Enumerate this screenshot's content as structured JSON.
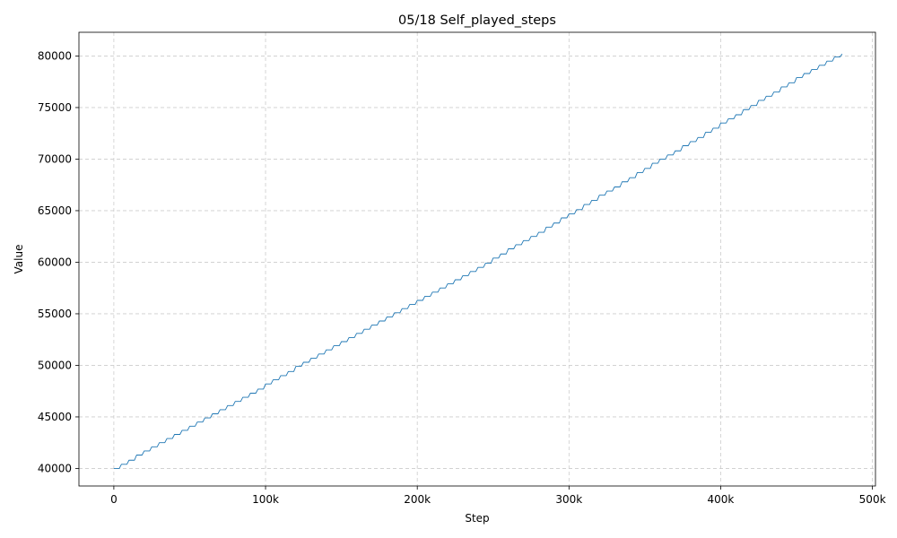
{
  "chart_data": {
    "type": "line",
    "title": "05/18  Self_played_steps",
    "xlabel": "Step",
    "ylabel": "Value",
    "xlim": [
      -23000,
      502000
    ],
    "ylim": [
      38300,
      82300
    ],
    "x_ticks": [
      {
        "value": 0,
        "label": "0"
      },
      {
        "value": 100000,
        "label": "100k"
      },
      {
        "value": 200000,
        "label": "200k"
      },
      {
        "value": 300000,
        "label": "300k"
      },
      {
        "value": 400000,
        "label": "400k"
      },
      {
        "value": 500000,
        "label": "500k"
      }
    ],
    "y_ticks": [
      {
        "value": 40000,
        "label": "40000"
      },
      {
        "value": 45000,
        "label": "45000"
      },
      {
        "value": 50000,
        "label": "50000"
      },
      {
        "value": 55000,
        "label": "55000"
      },
      {
        "value": 60000,
        "label": "60000"
      },
      {
        "value": 65000,
        "label": "65000"
      },
      {
        "value": 70000,
        "label": "70000"
      },
      {
        "value": 75000,
        "label": "75000"
      },
      {
        "value": 80000,
        "label": "80000"
      }
    ],
    "grid": true,
    "series": [
      {
        "color": "#1f77b4",
        "x": [
          0,
          5000,
          10000,
          15000,
          20000,
          25000,
          30000,
          35000,
          40000,
          45000,
          50000,
          55000,
          60000,
          65000,
          70000,
          75000,
          80000,
          85000,
          90000,
          95000,
          100000,
          105000,
          110000,
          115000,
          120000,
          125000,
          130000,
          135000,
          140000,
          145000,
          150000,
          155000,
          160000,
          165000,
          170000,
          175000,
          180000,
          185000,
          190000,
          195000,
          200000,
          205000,
          210000,
          215000,
          220000,
          225000,
          230000,
          235000,
          240000,
          245000,
          250000,
          255000,
          260000,
          265000,
          270000,
          275000,
          280000,
          285000,
          290000,
          295000,
          300000,
          305000,
          310000,
          315000,
          320000,
          325000,
          330000,
          335000,
          340000,
          345000,
          350000,
          355000,
          360000,
          365000,
          370000,
          375000,
          380000,
          385000,
          390000,
          395000,
          400000,
          405000,
          410000,
          415000,
          420000,
          425000,
          430000,
          435000,
          440000,
          445000,
          450000,
          455000,
          460000,
          465000,
          470000,
          475000,
          480000
        ],
        "values": [
          40000,
          40400,
          40800,
          41300,
          41700,
          42100,
          42500,
          42900,
          43300,
          43700,
          44100,
          44500,
          44900,
          45300,
          45700,
          46100,
          46500,
          46900,
          47300,
          47700,
          48200,
          48600,
          49000,
          49400,
          49900,
          50300,
          50700,
          51100,
          51500,
          51900,
          52300,
          52700,
          53100,
          53500,
          53900,
          54300,
          54700,
          55100,
          55500,
          55900,
          56300,
          56700,
          57100,
          57500,
          57900,
          58300,
          58700,
          59100,
          59500,
          59900,
          60400,
          60800,
          61300,
          61700,
          62100,
          62500,
          62900,
          63400,
          63800,
          64300,
          64700,
          65100,
          65600,
          66000,
          66500,
          66900,
          67300,
          67800,
          68200,
          68700,
          69100,
          69600,
          70000,
          70400,
          70800,
          71300,
          71700,
          72100,
          72600,
          73000,
          73500,
          73900,
          74300,
          74800,
          75200,
          75700,
          76100,
          76500,
          77000,
          77400,
          77900,
          78300,
          78700,
          79100,
          79500,
          79900,
          80200
        ]
      }
    ]
  }
}
